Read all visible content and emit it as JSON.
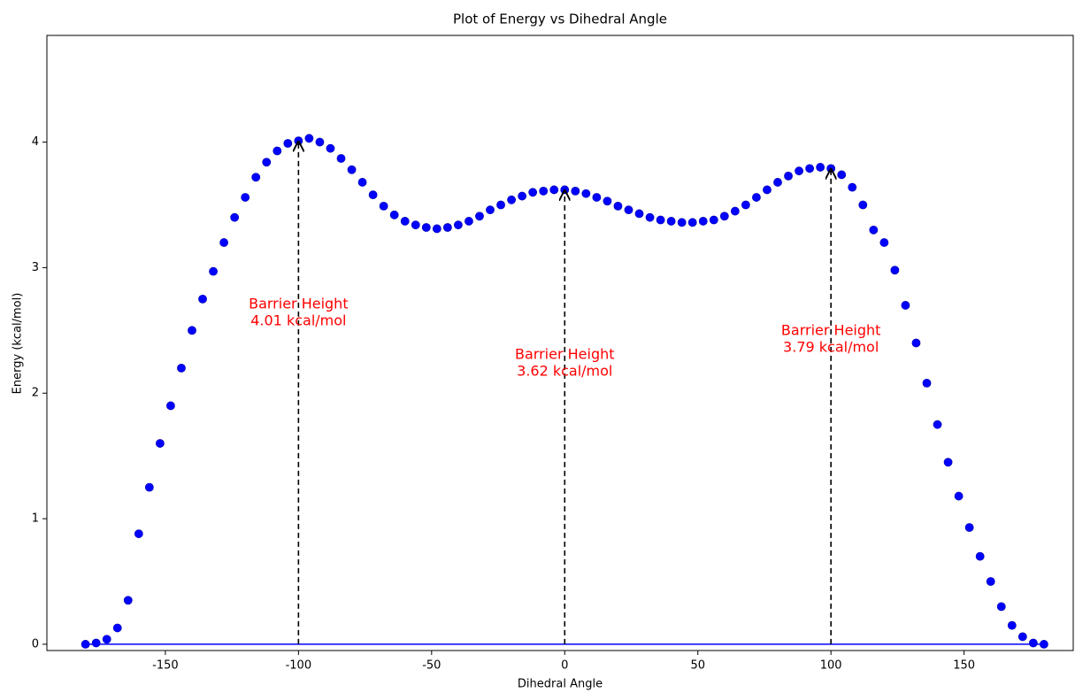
{
  "chart_data": {
    "type": "scatter",
    "title": "Plot of Energy vs Dihedral Angle",
    "xlabel": "Dihedral Angle",
    "ylabel": "Energy (kcal/mol)",
    "xlim": [
      -194.5,
      191
    ],
    "ylim": [
      -0.05,
      4.85
    ],
    "xticks": [
      -150,
      -100,
      -50,
      0,
      50,
      100,
      150
    ],
    "yticks": [
      0,
      1,
      2,
      3,
      4
    ],
    "series": [
      {
        "type": "scatter",
        "color": "#0000ff",
        "x": [
          -180,
          -176,
          -172,
          -168,
          -164,
          -160,
          -156,
          -152,
          -148,
          -144,
          -140,
          -136,
          -132,
          -128,
          -124,
          -120,
          -116,
          -112,
          -108,
          -104,
          -100,
          -96,
          -92,
          -88,
          -84,
          -80,
          -76,
          -72,
          -68,
          -64,
          -60,
          -56,
          -52,
          -48,
          -44,
          -40,
          -36,
          -32,
          -28,
          -24,
          -20,
          -16,
          -12,
          -8,
          -4,
          0,
          4,
          8,
          12,
          16,
          20,
          24,
          28,
          32,
          36,
          40,
          44,
          48,
          52,
          56,
          60,
          64,
          68,
          72,
          76,
          80,
          84,
          88,
          92,
          96,
          100,
          104,
          108,
          112,
          116,
          120,
          124,
          128,
          132,
          136,
          140,
          144,
          148,
          152,
          156,
          160,
          164,
          168,
          172,
          176,
          180
        ],
        "values": [
          0.0,
          0.01,
          0.04,
          0.13,
          0.35,
          0.88,
          1.25,
          1.6,
          1.9,
          2.2,
          2.5,
          2.75,
          2.97,
          3.2,
          3.4,
          3.56,
          3.72,
          3.84,
          3.93,
          3.99,
          4.01,
          4.03,
          4.0,
          3.95,
          3.87,
          3.78,
          3.68,
          3.58,
          3.49,
          3.42,
          3.37,
          3.34,
          3.32,
          3.31,
          3.32,
          3.34,
          3.37,
          3.41,
          3.46,
          3.5,
          3.54,
          3.57,
          3.6,
          3.61,
          3.62,
          3.62,
          3.61,
          3.59,
          3.56,
          3.53,
          3.49,
          3.46,
          3.43,
          3.4,
          3.38,
          3.37,
          3.36,
          3.36,
          3.37,
          3.38,
          3.41,
          3.45,
          3.5,
          3.56,
          3.62,
          3.68,
          3.73,
          3.77,
          3.79,
          3.8,
          3.79,
          3.74,
          3.64,
          3.5,
          3.3,
          3.2,
          2.98,
          2.7,
          2.4,
          2.08,
          1.75,
          1.45,
          1.18,
          0.93,
          0.7,
          0.5,
          0.3,
          0.15,
          0.06,
          0.01,
          0.0
        ]
      },
      {
        "type": "line",
        "color": "#0000ff",
        "x": [
          -180,
          180
        ],
        "values": [
          0,
          0
        ]
      }
    ],
    "annotations": [
      {
        "x": -100,
        "y": 4.01,
        "label": [
          "Barrier Height",
          "4.01 kcal/mol"
        ]
      },
      {
        "x": 0,
        "y": 3.62,
        "label": [
          "Barrier Height",
          "3.62 kcal/mol"
        ]
      },
      {
        "x": 100,
        "y": 3.79,
        "label": [
          "Barrier Height",
          "3.79 kcal/mol"
        ]
      }
    ]
  }
}
